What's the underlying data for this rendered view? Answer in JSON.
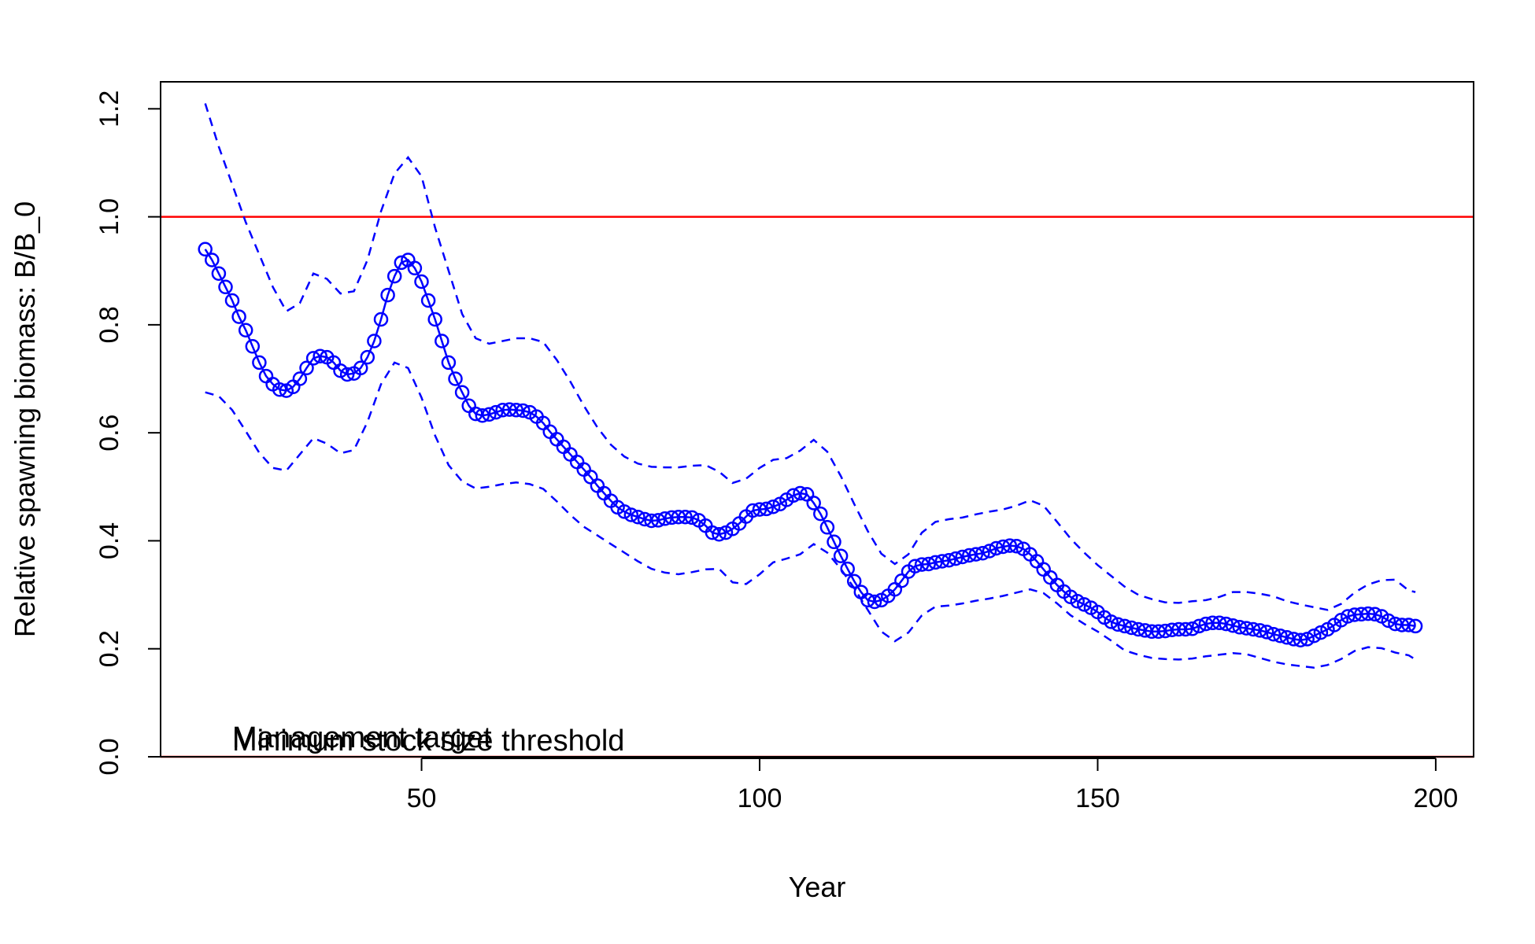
{
  "chart_data": {
    "type": "line",
    "title": "",
    "xlabel": "Year",
    "ylabel": "Relative spawning biomass: B/B_0",
    "xlim": [
      11.4,
      205.6
    ],
    "ylim": [
      0,
      1.25
    ],
    "xticks": [
      50,
      100,
      150,
      200
    ],
    "yticks": [
      0.0,
      0.2,
      0.4,
      0.6,
      0.8,
      1.0,
      1.2
    ],
    "xtick_labels": [
      "50",
      "100",
      "150",
      "200"
    ],
    "ytick_labels": [
      "0.0",
      "0.2",
      "0.4",
      "0.6",
      "0.8",
      "1.0",
      "1.2"
    ],
    "grid": false,
    "legend": "none",
    "colors": {
      "estimate": "#0000ff",
      "reference": "#ff0000",
      "axis": "#000000"
    },
    "reference_lines": [
      {
        "value": 1.0,
        "color": "#ff0000"
      },
      {
        "value": 0.0,
        "color": "#ff0000"
      }
    ],
    "annotations": [
      {
        "text": "Management target",
        "x": 22,
        "y": 0.0
      },
      {
        "text": "Minimum stock size threshold",
        "x": 22,
        "y": 0.0
      }
    ],
    "series": [
      {
        "style": "line+points",
        "x": [
          18,
          19,
          20,
          21,
          22,
          23,
          24,
          25,
          26,
          27,
          28,
          29,
          30,
          31,
          32,
          33,
          34,
          35,
          36,
          37,
          38,
          39,
          40,
          41,
          42,
          43,
          44,
          45,
          46,
          47,
          48,
          49,
          50,
          51,
          52,
          53,
          54,
          55,
          56,
          57,
          58,
          59,
          60,
          61,
          62,
          63,
          64,
          65,
          66,
          67,
          68,
          69,
          70,
          71,
          72,
          73,
          74,
          75,
          76,
          77,
          78,
          79,
          80,
          81,
          82,
          83,
          84,
          85,
          86,
          87,
          88,
          89,
          90,
          91,
          92,
          93,
          94,
          95,
          96,
          97,
          98,
          99,
          100,
          101,
          102,
          103,
          104,
          105,
          106,
          107,
          108,
          109,
          110,
          111,
          112,
          113,
          114,
          115,
          116,
          117,
          118,
          119,
          120,
          121,
          122,
          123,
          124,
          125,
          126,
          127,
          128,
          129,
          130,
          131,
          132,
          133,
          134,
          135,
          136,
          137,
          138,
          139,
          140,
          141,
          142,
          143,
          144,
          145,
          146,
          147,
          148,
          149,
          150,
          151,
          152,
          153,
          154,
          155,
          156,
          157,
          158,
          159,
          160,
          161,
          162,
          163,
          164,
          165,
          166,
          167,
          168,
          169,
          170,
          171,
          172,
          173,
          174,
          175,
          176,
          177,
          178,
          179,
          180,
          181,
          182,
          183,
          184,
          185,
          186,
          187,
          188,
          189,
          190,
          191,
          192,
          193,
          194,
          195,
          196,
          197
        ],
        "y": [
          0.94,
          0.92,
          0.895,
          0.87,
          0.845,
          0.815,
          0.79,
          0.76,
          0.73,
          0.705,
          0.69,
          0.68,
          0.678,
          0.685,
          0.7,
          0.72,
          0.738,
          0.742,
          0.74,
          0.73,
          0.715,
          0.708,
          0.71,
          0.72,
          0.74,
          0.77,
          0.81,
          0.855,
          0.89,
          0.915,
          0.92,
          0.905,
          0.88,
          0.845,
          0.81,
          0.77,
          0.73,
          0.7,
          0.675,
          0.65,
          0.635,
          0.632,
          0.634,
          0.638,
          0.642,
          0.643,
          0.642,
          0.641,
          0.638,
          0.63,
          0.618,
          0.602,
          0.588,
          0.574,
          0.56,
          0.546,
          0.532,
          0.518,
          0.502,
          0.488,
          0.474,
          0.462,
          0.454,
          0.448,
          0.444,
          0.44,
          0.437,
          0.438,
          0.441,
          0.443,
          0.444,
          0.444,
          0.443,
          0.438,
          0.428,
          0.415,
          0.412,
          0.415,
          0.422,
          0.432,
          0.445,
          0.456,
          0.458,
          0.459,
          0.463,
          0.468,
          0.476,
          0.484,
          0.488,
          0.486,
          0.47,
          0.45,
          0.425,
          0.398,
          0.372,
          0.348,
          0.325,
          0.305,
          0.29,
          0.287,
          0.29,
          0.298,
          0.31,
          0.326,
          0.343,
          0.353,
          0.356,
          0.357,
          0.36,
          0.362,
          0.364,
          0.367,
          0.37,
          0.373,
          0.375,
          0.377,
          0.381,
          0.386,
          0.389,
          0.391,
          0.39,
          0.385,
          0.375,
          0.362,
          0.347,
          0.332,
          0.318,
          0.306,
          0.296,
          0.288,
          0.282,
          0.276,
          0.268,
          0.258,
          0.25,
          0.245,
          0.242,
          0.239,
          0.236,
          0.234,
          0.232,
          0.232,
          0.233,
          0.235,
          0.236,
          0.236,
          0.237,
          0.242,
          0.246,
          0.248,
          0.248,
          0.246,
          0.243,
          0.24,
          0.238,
          0.236,
          0.234,
          0.231,
          0.227,
          0.224,
          0.221,
          0.218,
          0.216,
          0.218,
          0.224,
          0.23,
          0.236,
          0.244,
          0.253,
          0.26,
          0.263,
          0.264,
          0.265,
          0.264,
          0.26,
          0.252,
          0.246,
          0.244,
          0.244,
          0.242
        ]
      },
      {
        "style": "dashed",
        "x": [
          18,
          20,
          22,
          24,
          26,
          28,
          30,
          32,
          34,
          36,
          38,
          40,
          42,
          44,
          46,
          48,
          50,
          52,
          54,
          56,
          58,
          60,
          62,
          64,
          66,
          68,
          70,
          72,
          74,
          76,
          78,
          80,
          82,
          84,
          86,
          88,
          90,
          92,
          94,
          96,
          98,
          100,
          102,
          104,
          106,
          108,
          110,
          112,
          114,
          116,
          118,
          120,
          122,
          124,
          126,
          128,
          130,
          132,
          134,
          136,
          138,
          140,
          142,
          144,
          146,
          148,
          150,
          152,
          154,
          156,
          158,
          160,
          162,
          164,
          166,
          168,
          170,
          172,
          174,
          176,
          178,
          180,
          182,
          184,
          186,
          188,
          190,
          192,
          194,
          196,
          197
        ],
        "y": [
          1.21,
          1.13,
          1.06,
          0.99,
          0.93,
          0.87,
          0.825,
          0.84,
          0.895,
          0.885,
          0.858,
          0.862,
          0.92,
          1.01,
          1.08,
          1.11,
          1.075,
          0.98,
          0.9,
          0.82,
          0.775,
          0.765,
          0.77,
          0.775,
          0.775,
          0.768,
          0.735,
          0.695,
          0.65,
          0.61,
          0.578,
          0.556,
          0.543,
          0.537,
          0.536,
          0.536,
          0.539,
          0.54,
          0.528,
          0.507,
          0.515,
          0.535,
          0.55,
          0.553,
          0.567,
          0.587,
          0.565,
          0.52,
          0.468,
          0.418,
          0.376,
          0.357,
          0.375,
          0.415,
          0.435,
          0.44,
          0.443,
          0.449,
          0.454,
          0.458,
          0.465,
          0.475,
          0.465,
          0.435,
          0.404,
          0.378,
          0.355,
          0.335,
          0.315,
          0.3,
          0.292,
          0.286,
          0.285,
          0.288,
          0.29,
          0.296,
          0.305,
          0.305,
          0.302,
          0.297,
          0.288,
          0.282,
          0.277,
          0.272,
          0.283,
          0.304,
          0.319,
          0.327,
          0.328,
          0.308,
          0.305
        ]
      },
      {
        "style": "dashed",
        "x": [
          18,
          20,
          22,
          24,
          26,
          28,
          30,
          32,
          34,
          36,
          38,
          40,
          42,
          44,
          46,
          48,
          50,
          52,
          54,
          56,
          58,
          60,
          62,
          64,
          66,
          68,
          70,
          72,
          74,
          76,
          78,
          80,
          82,
          84,
          86,
          88,
          90,
          92,
          94,
          96,
          98,
          100,
          102,
          104,
          106,
          108,
          110,
          112,
          114,
          116,
          118,
          120,
          122,
          124,
          126,
          128,
          130,
          132,
          134,
          136,
          138,
          140,
          142,
          144,
          146,
          148,
          150,
          152,
          154,
          156,
          158,
          160,
          162,
          164,
          166,
          168,
          170,
          172,
          174,
          176,
          178,
          180,
          182,
          184,
          186,
          188,
          190,
          192,
          194,
          196,
          197
        ],
        "y": [
          0.675,
          0.668,
          0.642,
          0.603,
          0.563,
          0.535,
          0.53,
          0.56,
          0.59,
          0.58,
          0.562,
          0.568,
          0.62,
          0.69,
          0.73,
          0.72,
          0.665,
          0.595,
          0.54,
          0.51,
          0.497,
          0.5,
          0.505,
          0.508,
          0.505,
          0.496,
          0.473,
          0.448,
          0.426,
          0.41,
          0.394,
          0.378,
          0.362,
          0.348,
          0.341,
          0.338,
          0.342,
          0.347,
          0.348,
          0.323,
          0.32,
          0.338,
          0.36,
          0.367,
          0.375,
          0.394,
          0.378,
          0.348,
          0.312,
          0.272,
          0.232,
          0.214,
          0.23,
          0.262,
          0.278,
          0.28,
          0.284,
          0.289,
          0.293,
          0.298,
          0.304,
          0.31,
          0.303,
          0.284,
          0.262,
          0.246,
          0.232,
          0.215,
          0.197,
          0.189,
          0.183,
          0.181,
          0.18,
          0.182,
          0.186,
          0.189,
          0.192,
          0.19,
          0.183,
          0.176,
          0.171,
          0.168,
          0.165,
          0.17,
          0.181,
          0.196,
          0.203,
          0.201,
          0.193,
          0.188,
          0.18
        ]
      }
    ]
  }
}
